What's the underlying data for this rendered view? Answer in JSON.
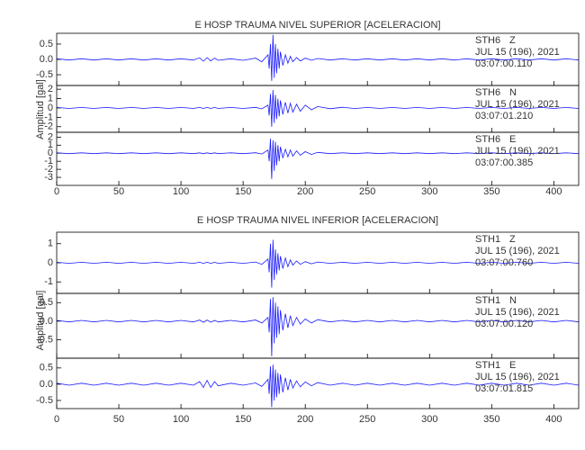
{
  "chart_data": [
    {
      "type": "line",
      "title": "E HOSP TRAUMA NIVEL SUPERIOR [ACELERACION]",
      "y_label": "Amplitud [gal]",
      "xlim": [
        0,
        420
      ],
      "xticks": [
        0,
        50,
        100,
        150,
        200,
        250,
        300,
        350,
        400
      ],
      "x": [
        0,
        10,
        20,
        30,
        40,
        50,
        60,
        70,
        80,
        90,
        100,
        110,
        115,
        118,
        121,
        124,
        127,
        130,
        140,
        150,
        160,
        165,
        170,
        171,
        172,
        173,
        174,
        175,
        176,
        177,
        178,
        179,
        180,
        182,
        184,
        186,
        188,
        190,
        193,
        196,
        200,
        205,
        210,
        220,
        230,
        240,
        250,
        260,
        270,
        280,
        290,
        300,
        310,
        320,
        330,
        340,
        350,
        360,
        370,
        380,
        390,
        400,
        410,
        420
      ],
      "panels": [
        {
          "station": "STH6",
          "component": "Z",
          "date": "JUL 15 (196), 2021",
          "time": "03:07:00.110",
          "color": "#1a1aff",
          "ylim": [
            -0.85,
            0.85
          ],
          "yticks": [
            0.5,
            {
              "value": 0,
              "label": "0.0"
            },
            -0.5
          ],
          "values": [
            0.02,
            -0.02,
            0.02,
            -0.02,
            0.02,
            -0.02,
            0.02,
            -0.02,
            0.02,
            -0.02,
            0.02,
            -0.02,
            0.05,
            -0.06,
            0.06,
            -0.05,
            0.04,
            -0.03,
            0.02,
            -0.03,
            0.04,
            -0.08,
            0.15,
            -0.3,
            0.5,
            -0.7,
            0.8,
            -0.6,
            0.5,
            -0.45,
            0.35,
            -0.3,
            0.25,
            -0.2,
            0.15,
            -0.12,
            0.1,
            -0.08,
            0.06,
            -0.05,
            0.04,
            -0.03,
            0.03,
            -0.02,
            0.02,
            -0.02,
            0.02,
            -0.02,
            0.02,
            -0.02,
            0.02,
            -0.02,
            0.02,
            -0.02,
            0.02,
            -0.02,
            0.02,
            -0.02,
            0.02,
            -0.02,
            0.02,
            -0.02,
            0.02,
            -0.02
          ]
        },
        {
          "station": "STH6",
          "component": "N",
          "date": "JUL 15 (196), 2021",
          "time": "03:07:01.210",
          "color": "#1a1aff",
          "ylim": [
            -2.6,
            2.4
          ],
          "yticks": [
            2,
            1,
            0,
            -1,
            -2
          ],
          "values": [
            0.05,
            -0.05,
            0.05,
            -0.05,
            0.05,
            -0.05,
            0.05,
            -0.05,
            0.05,
            -0.05,
            0.05,
            -0.05,
            0.05,
            -0.05,
            0.05,
            -0.05,
            0.05,
            -0.05,
            0.05,
            -0.05,
            0.06,
            -0.1,
            0.3,
            -0.8,
            1.5,
            -2.0,
            1.9,
            -1.6,
            1.4,
            -1.2,
            1.0,
            -0.9,
            0.8,
            -0.7,
            0.6,
            -0.55,
            0.5,
            -0.45,
            0.4,
            -0.35,
            0.3,
            -0.2,
            0.15,
            -0.08,
            0.07,
            -0.06,
            0.05,
            -0.05,
            0.05,
            -0.05,
            0.05,
            -0.05,
            0.05,
            -0.05,
            0.05,
            -0.05,
            0.05,
            -0.05,
            0.05,
            -0.05,
            0.05,
            -0.05,
            0.05,
            -0.05
          ]
        },
        {
          "station": "STH6",
          "component": "E",
          "date": "JUL 15 (196), 2021",
          "time": "03:07:00.385",
          "color": "#1a1aff",
          "ylim": [
            -4,
            2.6
          ],
          "yticks": [
            2,
            1,
            0,
            -1,
            -2,
            -3
          ],
          "values": [
            0.05,
            -0.05,
            0.05,
            -0.05,
            0.05,
            -0.05,
            0.05,
            -0.05,
            0.05,
            -0.05,
            0.05,
            -0.05,
            0.05,
            -0.05,
            0.05,
            -0.05,
            0.05,
            -0.05,
            0.05,
            -0.05,
            0.06,
            -0.1,
            0.4,
            -1.0,
            1.8,
            -3.2,
            1.6,
            -2.2,
            1.4,
            -1.5,
            1.0,
            -1.0,
            0.8,
            -0.6,
            0.5,
            -0.45,
            0.4,
            -0.35,
            0.3,
            -0.25,
            0.2,
            -0.15,
            0.1,
            -0.05,
            0.05,
            -0.05,
            0.05,
            -0.05,
            0.05,
            -0.05,
            0.05,
            -0.05,
            0.05,
            -0.05,
            0.05,
            -0.05,
            0.05,
            -0.05,
            0.05,
            -0.05,
            0.05,
            -0.05,
            0.05,
            -0.05
          ]
        }
      ]
    },
    {
      "type": "line",
      "title": "E HOSP TRAUMA NIVEL INFERIOR [ACELERACION]",
      "y_label": "Amplitud [gal]",
      "xlim": [
        0,
        420
      ],
      "xticks": [
        0,
        50,
        100,
        150,
        200,
        250,
        300,
        350,
        400
      ],
      "x": [
        0,
        10,
        20,
        30,
        40,
        50,
        60,
        70,
        80,
        90,
        100,
        110,
        115,
        118,
        121,
        124,
        127,
        130,
        140,
        150,
        160,
        165,
        170,
        171,
        172,
        173,
        174,
        175,
        176,
        177,
        178,
        179,
        180,
        182,
        184,
        186,
        188,
        190,
        193,
        196,
        200,
        205,
        210,
        220,
        230,
        240,
        250,
        260,
        270,
        280,
        290,
        300,
        310,
        320,
        330,
        340,
        350,
        360,
        370,
        380,
        390,
        400,
        410,
        420
      ],
      "panels": [
        {
          "station": "STH1",
          "component": "Z",
          "date": "JUL 15 (196), 2021",
          "time": "03:07:00.760",
          "color": "#1a1aff",
          "ylim": [
            -1.6,
            1.6
          ],
          "yticks": [
            1,
            0,
            -1
          ],
          "values": [
            0.03,
            -0.03,
            0.03,
            -0.03,
            0.03,
            -0.03,
            0.03,
            -0.03,
            0.03,
            -0.03,
            0.03,
            -0.03,
            0.03,
            -0.03,
            0.03,
            -0.03,
            0.03,
            -0.03,
            0.03,
            -0.03,
            0.04,
            -0.08,
            0.2,
            -0.5,
            1.0,
            -1.3,
            1.2,
            -0.9,
            0.7,
            -0.6,
            0.5,
            -0.4,
            0.35,
            -0.3,
            0.25,
            -0.2,
            0.15,
            -0.12,
            0.1,
            -0.08,
            0.06,
            -0.05,
            0.04,
            -0.03,
            0.03,
            -0.03,
            0.03,
            -0.03,
            0.03,
            -0.03,
            0.03,
            -0.03,
            0.03,
            -0.03,
            0.03,
            -0.03,
            0.03,
            -0.03,
            0.03,
            -0.03,
            0.03,
            -0.03,
            0.03,
            -0.03
          ]
        },
        {
          "station": "STH1",
          "component": "N",
          "date": "JUL 15 (196), 2021",
          "time": "03:07:00.120",
          "color": "#1a1aff",
          "ylim": [
            -1.0,
            0.75
          ],
          "yticks": [
            0.5,
            {
              "value": 0,
              "label": "0.0"
            },
            -0.5
          ],
          "values": [
            0.02,
            -0.02,
            0.02,
            -0.02,
            0.02,
            -0.02,
            0.02,
            -0.02,
            0.02,
            -0.02,
            0.02,
            -0.02,
            0.03,
            -0.03,
            0.03,
            -0.03,
            0.02,
            -0.02,
            0.02,
            -0.02,
            0.03,
            -0.05,
            0.1,
            -0.3,
            0.6,
            -0.95,
            0.65,
            -0.6,
            0.5,
            -0.45,
            0.4,
            -0.35,
            0.3,
            -0.25,
            0.2,
            -0.18,
            0.15,
            -0.12,
            0.1,
            -0.08,
            0.06,
            -0.05,
            0.04,
            -0.02,
            0.02,
            -0.02,
            0.02,
            -0.02,
            0.02,
            -0.02,
            0.02,
            -0.02,
            0.02,
            -0.02,
            0.02,
            -0.02,
            0.02,
            -0.02,
            0.02,
            -0.02,
            0.02,
            -0.02,
            0.02,
            -0.02
          ]
        },
        {
          "station": "STH1",
          "component": "E",
          "date": "JUL 15 (196), 2021",
          "time": "03:07:01.815",
          "color": "#1a1aff",
          "ylim": [
            -0.75,
            0.8
          ],
          "yticks": [
            0.5,
            {
              "value": 0,
              "label": "0.0"
            },
            -0.5
          ],
          "values": [
            0.03,
            -0.03,
            0.03,
            -0.03,
            0.03,
            -0.03,
            0.03,
            -0.03,
            0.03,
            -0.03,
            0.03,
            -0.03,
            0.08,
            -0.1,
            0.12,
            -0.1,
            0.08,
            -0.05,
            0.03,
            -0.03,
            0.04,
            -0.07,
            0.15,
            -0.3,
            0.55,
            -0.7,
            0.6,
            -0.5,
            0.45,
            -0.4,
            0.35,
            -0.3,
            0.3,
            -0.25,
            0.2,
            -0.18,
            0.15,
            -0.12,
            0.1,
            -0.08,
            0.07,
            -0.05,
            0.05,
            -0.03,
            0.03,
            -0.03,
            0.03,
            -0.03,
            0.03,
            -0.03,
            0.03,
            -0.03,
            0.03,
            -0.03,
            0.03,
            -0.03,
            0.03,
            -0.03,
            0.03,
            -0.03,
            0.03,
            -0.03,
            0.03,
            -0.03
          ]
        }
      ]
    }
  ]
}
